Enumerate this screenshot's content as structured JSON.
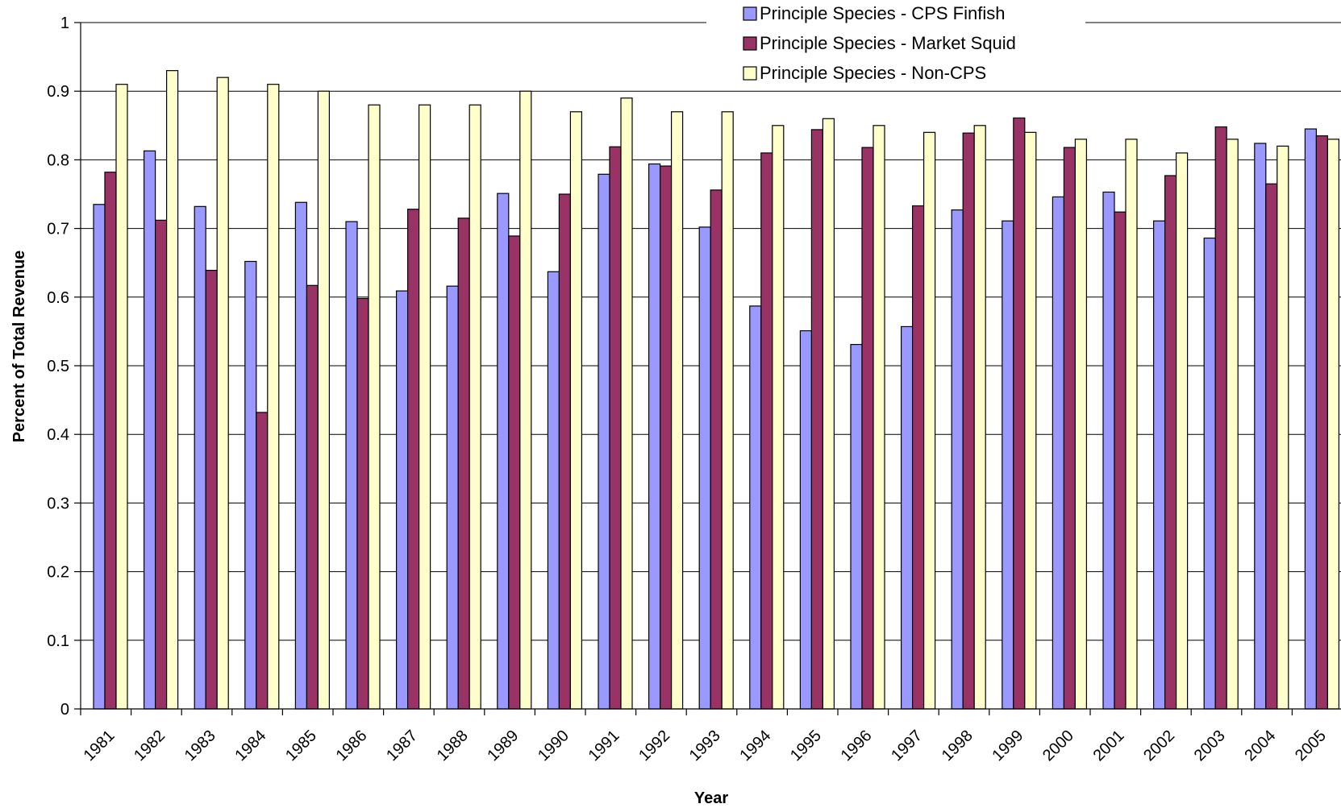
{
  "chart_data": {
    "type": "bar",
    "title": "",
    "xlabel": "Year",
    "ylabel": "Percent of Total Revenue",
    "ylim": [
      0,
      1
    ],
    "yticks": [
      "0",
      "0.1",
      "0.2",
      "0.3",
      "0.4",
      "0.5",
      "0.6",
      "0.7",
      "0.8",
      "0.9",
      "1"
    ],
    "grid": true,
    "legend_position": "top-right",
    "categories": [
      "1981",
      "1982",
      "1983",
      "1984",
      "1985",
      "1986",
      "1987",
      "1988",
      "1989",
      "1990",
      "1991",
      "1992",
      "1993",
      "1994",
      "1995",
      "1996",
      "1997",
      "1998",
      "1999",
      "2000",
      "2001",
      "2002",
      "2003",
      "2004",
      "2005"
    ],
    "series": [
      {
        "name": "Principle Species - CPS Finfish",
        "color": "#9999ff",
        "values": [
          0.735,
          0.813,
          0.732,
          0.652,
          0.738,
          0.71,
          0.609,
          0.616,
          0.751,
          0.637,
          0.779,
          0.794,
          0.702,
          0.587,
          0.551,
          0.531,
          0.557,
          0.727,
          0.711,
          0.746,
          0.753,
          0.711,
          0.686,
          0.824,
          0.845
        ]
      },
      {
        "name": "Principle Species - Market Squid",
        "color": "#993366",
        "values": [
          0.782,
          0.712,
          0.639,
          0.432,
          0.617,
          0.598,
          0.728,
          0.715,
          0.689,
          0.75,
          0.819,
          0.791,
          0.756,
          0.81,
          0.844,
          0.818,
          0.733,
          0.839,
          0.861,
          0.818,
          0.724,
          0.777,
          0.848,
          0.765,
          0.835
        ]
      },
      {
        "name": "Principle Species - Non-CPS",
        "color": "#ffffcc",
        "values": [
          0.91,
          0.93,
          0.92,
          0.91,
          0.9,
          0.88,
          0.88,
          0.88,
          0.9,
          0.87,
          0.89,
          0.87,
          0.87,
          0.85,
          0.86,
          0.85,
          0.84,
          0.85,
          0.84,
          0.83,
          0.83,
          0.81,
          0.83,
          0.82,
          0.83
        ]
      }
    ]
  }
}
